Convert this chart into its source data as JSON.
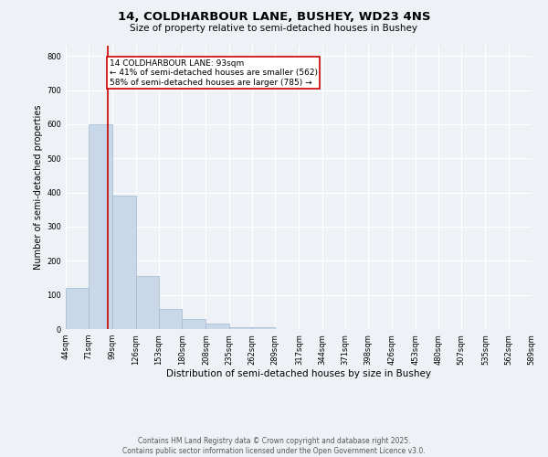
{
  "title": "14, COLDHARBOUR LANE, BUSHEY, WD23 4NS",
  "subtitle": "Size of property relative to semi-detached houses in Bushey",
  "xlabel": "Distribution of semi-detached houses by size in Bushey",
  "ylabel": "Number of semi-detached properties",
  "bin_edges": [
    44,
    71,
    99,
    126,
    153,
    180,
    208,
    235,
    262,
    289,
    317,
    344,
    371,
    398,
    426,
    453,
    480,
    507,
    535,
    562,
    589
  ],
  "bar_heights": [
    120,
    600,
    390,
    155,
    60,
    30,
    15,
    5,
    5,
    0,
    0,
    0,
    0,
    0,
    0,
    0,
    0,
    0,
    0,
    0
  ],
  "bar_color": "#c8d8e8",
  "bar_edgecolor": "#a0b8d0",
  "property_size": 93,
  "property_label": "14 COLDHARBOUR LANE: 93sqm",
  "pct_smaller": 41,
  "num_smaller": 562,
  "pct_larger": 58,
  "num_larger": 785,
  "vline_color": "#cc0000",
  "annotation_box_color": "#cc0000",
  "ylim": [
    0,
    830
  ],
  "yticks": [
    0,
    100,
    200,
    300,
    400,
    500,
    600,
    700,
    800
  ],
  "background_color": "#eef2f7",
  "plot_background": "#eef2f7",
  "grid_color": "#ffffff",
  "footer_line1": "Contains HM Land Registry data © Crown copyright and database right 2025.",
  "footer_line2": "Contains public sector information licensed under the Open Government Licence v3.0.",
  "title_fontsize": 9.5,
  "subtitle_fontsize": 7.5,
  "xlabel_fontsize": 7.5,
  "ylabel_fontsize": 7,
  "tick_fontsize": 6,
  "footer_fontsize": 5.5,
  "annotation_fontsize": 6.5
}
